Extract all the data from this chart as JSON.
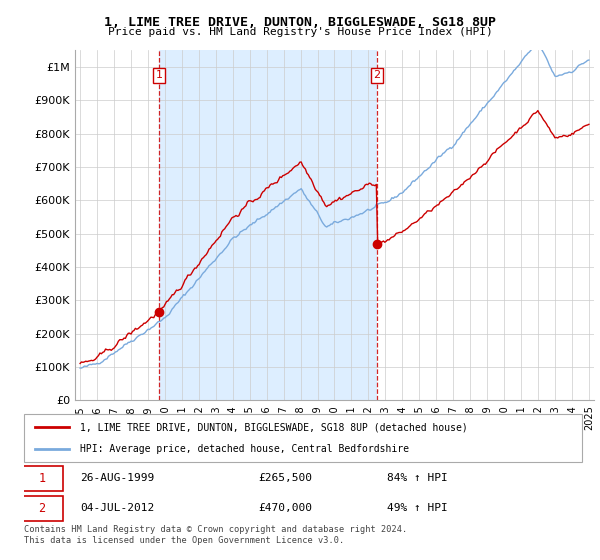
{
  "title": "1, LIME TREE DRIVE, DUNTON, BIGGLESWADE, SG18 8UP",
  "subtitle": "Price paid vs. HM Land Registry's House Price Index (HPI)",
  "legend_line1": "1, LIME TREE DRIVE, DUNTON, BIGGLESWADE, SG18 8UP (detached house)",
  "legend_line2": "HPI: Average price, detached house, Central Bedfordshire",
  "transaction1_date": "26-AUG-1999",
  "transaction1_price": "£265,500",
  "transaction1_hpi": "84% ↑ HPI",
  "transaction2_date": "04-JUL-2012",
  "transaction2_price": "£470,000",
  "transaction2_hpi": "49% ↑ HPI",
  "footnote": "Contains HM Land Registry data © Crown copyright and database right 2024.\nThis data is licensed under the Open Government Licence v3.0.",
  "red_color": "#cc0000",
  "blue_color": "#7aaadd",
  "shade_color": "#ddeeff",
  "ylim": [
    0,
    1050000
  ],
  "yticks": [
    0,
    100000,
    200000,
    300000,
    400000,
    500000,
    600000,
    700000,
    800000,
    900000,
    1000000
  ],
  "ytick_labels": [
    "£0",
    "£100K",
    "£200K",
    "£300K",
    "£400K",
    "£500K",
    "£600K",
    "£700K",
    "£800K",
    "£900K",
    "£1M"
  ],
  "transaction1_year": 1999.65,
  "transaction2_year": 2012.51
}
